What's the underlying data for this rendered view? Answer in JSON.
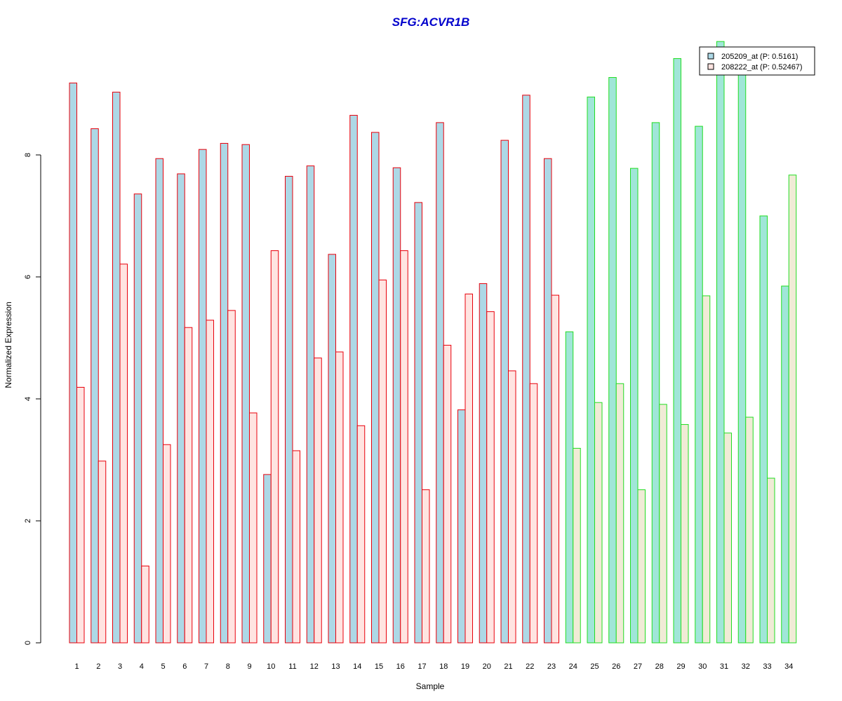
{
  "chart_data": {
    "type": "bar",
    "title": "SFG:ACVR1B",
    "xlabel": "Sample",
    "ylabel": "Normalized Expression",
    "ylim": [
      0,
      9.9
    ],
    "yticks": [
      0,
      2,
      4,
      6,
      8
    ],
    "grid": false,
    "legend_position": "top-right",
    "categories": [
      "1",
      "2",
      "3",
      "4",
      "5",
      "6",
      "7",
      "8",
      "9",
      "10",
      "11",
      "12",
      "13",
      "14",
      "15",
      "16",
      "17",
      "18",
      "19",
      "20",
      "21",
      "22",
      "23",
      "24",
      "25",
      "26",
      "27",
      "28",
      "29",
      "30",
      "31",
      "32",
      "33",
      "34"
    ],
    "groups": [
      {
        "samples": "1-23",
        "border_color": "#E8000B"
      },
      {
        "samples": "24-34",
        "border_color": "#22DD22"
      }
    ],
    "series": [
      {
        "name": "205209_at (P: 0.5161)",
        "fill_colors": [
          "#ADD8E6",
          "#A0E6D8"
        ],
        "values": [
          9.18,
          8.43,
          9.03,
          7.36,
          7.94,
          7.69,
          8.09,
          8.19,
          8.17,
          2.76,
          7.65,
          7.82,
          6.37,
          8.65,
          8.37,
          7.79,
          7.22,
          8.53,
          3.82,
          5.89,
          8.24,
          8.98,
          7.94,
          5.1,
          8.95,
          9.27,
          7.78,
          8.53,
          9.58,
          8.47,
          9.86,
          9.33,
          7.0,
          5.85
        ]
      },
      {
        "name": "208222_at (P: 0.52467)",
        "fill_colors": [
          "#FFE4E1",
          "#F0EBD6"
        ],
        "values": [
          4.19,
          2.98,
          6.21,
          1.26,
          3.25,
          5.17,
          5.29,
          5.45,
          3.77,
          6.43,
          3.15,
          4.67,
          4.77,
          3.56,
          5.95,
          6.43,
          2.51,
          4.88,
          5.72,
          5.43,
          4.46,
          4.25,
          5.7,
          3.19,
          3.94,
          4.25,
          2.51,
          3.91,
          3.58,
          5.69,
          3.44,
          3.7,
          2.7,
          7.67
        ]
      }
    ]
  }
}
